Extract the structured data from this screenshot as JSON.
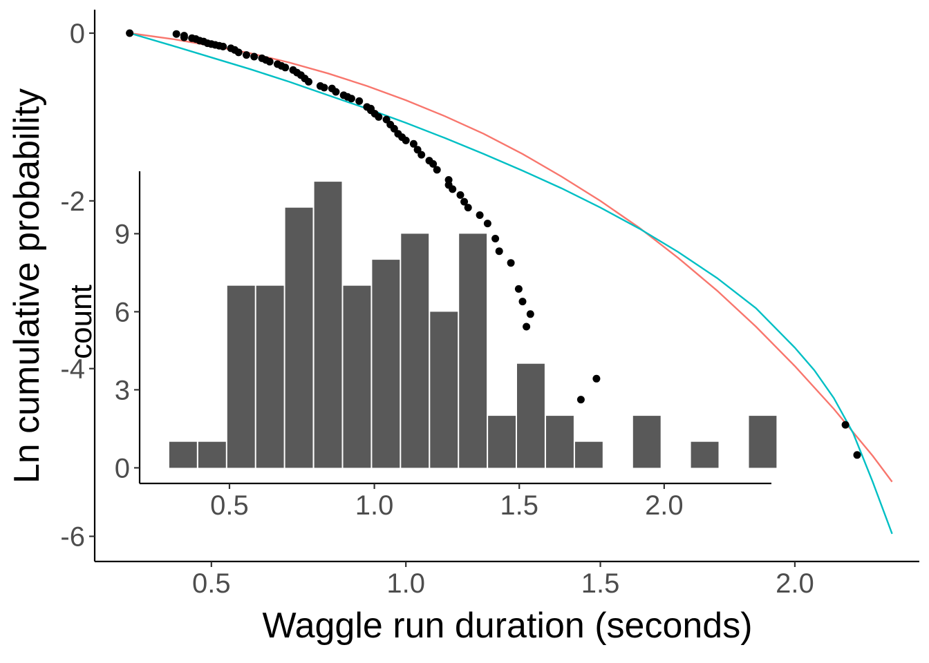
{
  "chart_data": [
    {
      "type": "scatter",
      "xlabel": "Waggle run duration (seconds)",
      "ylabel": "Ln cumulative probability",
      "xlim": [
        0.2,
        2.32
      ],
      "ylim": [
        -6.3,
        0.28
      ],
      "xticks": [
        0.5,
        1.0,
        1.5,
        2.0
      ],
      "xtick_labels": [
        "0.5",
        "1.0",
        "1.5",
        "2.0"
      ],
      "yticks": [
        0,
        -2,
        -4,
        -6
      ],
      "ytick_labels": [
        "0",
        "-2",
        "-4",
        "-6"
      ],
      "grid": false,
      "points": [
        [
          0.29,
          0.0
        ],
        [
          0.41,
          -0.01
        ],
        [
          0.43,
          -0.03
        ],
        [
          0.43,
          -0.05
        ],
        [
          0.45,
          -0.06
        ],
        [
          0.46,
          -0.07
        ],
        [
          0.47,
          -0.09
        ],
        [
          0.48,
          -0.1
        ],
        [
          0.49,
          -0.12
        ],
        [
          0.5,
          -0.13
        ],
        [
          0.51,
          -0.14
        ],
        [
          0.52,
          -0.15
        ],
        [
          0.53,
          -0.16
        ],
        [
          0.55,
          -0.18
        ],
        [
          0.56,
          -0.2
        ],
        [
          0.57,
          -0.23
        ],
        [
          0.59,
          -0.26
        ],
        [
          0.61,
          -0.28
        ],
        [
          0.63,
          -0.3
        ],
        [
          0.64,
          -0.32
        ],
        [
          0.65,
          -0.34
        ],
        [
          0.67,
          -0.37
        ],
        [
          0.68,
          -0.39
        ],
        [
          0.69,
          -0.41
        ],
        [
          0.71,
          -0.44
        ],
        [
          0.72,
          -0.47
        ],
        [
          0.73,
          -0.5
        ],
        [
          0.74,
          -0.54
        ],
        [
          0.75,
          -0.58
        ],
        [
          0.78,
          -0.63
        ],
        [
          0.79,
          -0.65
        ],
        [
          0.81,
          -0.66
        ],
        [
          0.82,
          -0.7
        ],
        [
          0.84,
          -0.74
        ],
        [
          0.85,
          -0.76
        ],
        [
          0.86,
          -0.78
        ],
        [
          0.88,
          -0.81
        ],
        [
          0.9,
          -0.88
        ],
        [
          0.91,
          -0.9
        ],
        [
          0.91,
          -0.92
        ],
        [
          0.92,
          -0.96
        ],
        [
          0.93,
          -1.0
        ],
        [
          0.95,
          -1.03
        ],
        [
          0.96,
          -1.09
        ],
        [
          0.97,
          -1.14
        ],
        [
          0.98,
          -1.2
        ],
        [
          0.99,
          -1.24
        ],
        [
          1.0,
          -1.28
        ],
        [
          1.02,
          -1.32
        ],
        [
          1.03,
          -1.39
        ],
        [
          1.04,
          -1.45
        ],
        [
          1.06,
          -1.52
        ],
        [
          1.07,
          -1.56
        ],
        [
          1.08,
          -1.63
        ],
        [
          1.11,
          -1.75
        ],
        [
          1.11,
          -1.81
        ],
        [
          1.12,
          -1.86
        ],
        [
          1.14,
          -1.93
        ],
        [
          1.15,
          -2.01
        ],
        [
          1.16,
          -2.08
        ],
        [
          1.19,
          -2.17
        ],
        [
          1.21,
          -2.27
        ],
        [
          1.23,
          -2.45
        ],
        [
          1.24,
          -2.6
        ],
        [
          1.27,
          -2.74
        ],
        [
          1.29,
          -3.05
        ],
        [
          1.3,
          -3.2
        ],
        [
          1.32,
          -3.35
        ],
        [
          1.31,
          -3.5
        ],
        [
          1.33,
          -4.2
        ],
        [
          1.45,
          -4.37
        ],
        [
          1.49,
          -4.12
        ],
        [
          2.13,
          -4.67
        ],
        [
          2.16,
          -5.03
        ]
      ],
      "series": [
        {
          "name": "",
          "color": "#F8766D",
          "x": [
            0.29,
            0.4,
            0.5,
            0.6,
            0.7,
            0.8,
            0.9,
            1.0,
            1.1,
            1.2,
            1.3,
            1.4,
            1.5,
            1.6,
            1.7,
            1.8,
            1.9,
            2.0,
            2.1,
            2.2,
            2.25
          ],
          "y": [
            0.0,
            -0.07,
            -0.15,
            -0.24,
            -0.35,
            -0.48,
            -0.63,
            -0.8,
            -0.99,
            -1.2,
            -1.44,
            -1.71,
            -2.0,
            -2.32,
            -2.68,
            -3.07,
            -3.5,
            -3.97,
            -4.48,
            -5.04,
            -5.35
          ]
        },
        {
          "name": "",
          "color": "#00BFC4",
          "x": [
            0.29,
            0.4,
            0.5,
            0.6,
            0.7,
            0.8,
            0.9,
            1.0,
            1.1,
            1.2,
            1.3,
            1.4,
            1.5,
            1.6,
            1.7,
            1.8,
            1.9,
            2.0,
            2.05,
            2.1,
            2.15,
            2.2,
            2.25
          ],
          "y": [
            0.0,
            -0.15,
            -0.29,
            -0.43,
            -0.58,
            -0.74,
            -0.9,
            -1.07,
            -1.25,
            -1.44,
            -1.64,
            -1.85,
            -2.08,
            -2.33,
            -2.61,
            -2.92,
            -3.28,
            -3.75,
            -4.02,
            -4.35,
            -4.77,
            -5.35,
            -5.97
          ]
        }
      ]
    },
    {
      "type": "bar",
      "xlabel": "",
      "ylabel": "count",
      "xlim": [
        0.19,
        2.37
      ],
      "ylim": [
        -0.6,
        11.4
      ],
      "xticks": [
        0.5,
        1.0,
        1.5,
        2.0
      ],
      "xtick_labels": [
        "0.5",
        "1.0",
        "1.5",
        "2.0"
      ],
      "yticks": [
        0,
        3,
        6,
        9
      ],
      "ytick_labels": [
        "0",
        "3",
        "6",
        "9"
      ],
      "grid": false,
      "bar_color": "#595959",
      "bins": [
        [
          0.29,
          0.39,
          1
        ],
        [
          0.39,
          0.49,
          1
        ],
        [
          0.49,
          0.59,
          7
        ],
        [
          0.59,
          0.69,
          7
        ],
        [
          0.69,
          0.79,
          10
        ],
        [
          0.79,
          0.89,
          11
        ],
        [
          0.89,
          0.99,
          7
        ],
        [
          0.99,
          1.09,
          8
        ],
        [
          1.09,
          1.19,
          9
        ],
        [
          1.19,
          1.29,
          6
        ],
        [
          1.29,
          1.39,
          9
        ],
        [
          1.39,
          1.49,
          2
        ],
        [
          1.49,
          1.59,
          4
        ],
        [
          1.59,
          1.69,
          2
        ],
        [
          1.69,
          1.79,
          1
        ],
        [
          1.79,
          1.89,
          0
        ],
        [
          1.89,
          1.99,
          2
        ],
        [
          1.99,
          2.09,
          0
        ],
        [
          2.09,
          2.19,
          1
        ],
        [
          2.19,
          2.29,
          0
        ],
        [
          2.29,
          2.39,
          2
        ]
      ]
    }
  ]
}
